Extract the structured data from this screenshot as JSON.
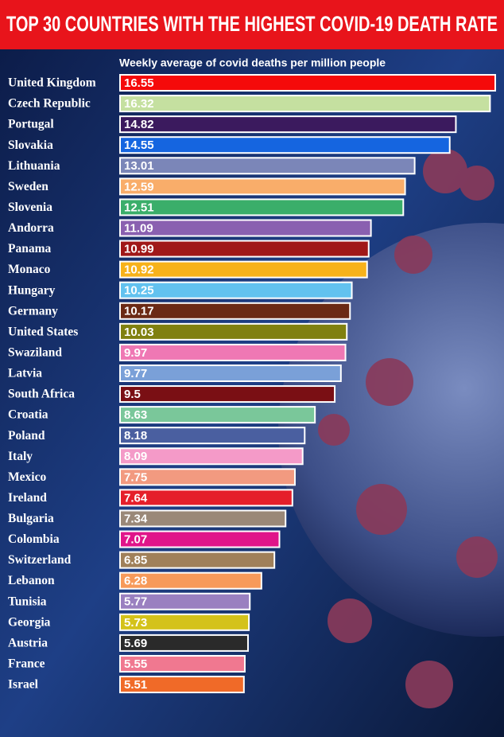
{
  "chart_data": {
    "type": "bar",
    "orientation": "horizontal",
    "title": "TOP 30 COUNTRIES WITH THE HIGHEST COVID-19 DEATH RATE",
    "subtitle": "Weekly average of covid deaths per million people",
    "categories": [
      "United Kingdom",
      "Czech Republic",
      "Portugal",
      "Slovakia",
      "Lithuania",
      "Sweden",
      "Slovenia",
      "Andorra",
      "Panama",
      "Monaco",
      "Hungary",
      "Germany",
      "United States",
      "Swaziland",
      "Latvia",
      "South Africa",
      "Croatia",
      "Poland",
      "Italy",
      "Mexico",
      "Ireland",
      "Bulgaria",
      "Colombia",
      "Switzerland",
      "Lebanon",
      "Tunisia",
      "Georgia",
      "Austria",
      "France",
      "Israel"
    ],
    "values": [
      16.55,
      16.32,
      14.82,
      14.55,
      13.01,
      12.59,
      12.51,
      11.09,
      10.99,
      10.92,
      10.25,
      10.17,
      10.03,
      9.97,
      9.77,
      9.5,
      8.63,
      8.18,
      8.09,
      7.75,
      7.64,
      7.34,
      7.07,
      6.85,
      6.28,
      5.77,
      5.73,
      5.69,
      5.55,
      5.51
    ],
    "colors": [
      "#f50a0a",
      "#c5e0a0",
      "#3b1a5e",
      "#1565e0",
      "#7b86b8",
      "#f9ad6a",
      "#3aae6a",
      "#8a60b0",
      "#a01818",
      "#f7b21a",
      "#62c2ef",
      "#6b2a15",
      "#808010",
      "#ef78b4",
      "#7aa0d8",
      "#7a0f14",
      "#7ac79a",
      "#4a5fa0",
      "#f49ac8",
      "#f29a80",
      "#e51f2a",
      "#9a8878",
      "#e0158a",
      "#a0805a",
      "#f79a5a",
      "#9a80c0",
      "#d4c21a",
      "#2a2a2a",
      "#f07890",
      "#f06a28"
    ]
  }
}
